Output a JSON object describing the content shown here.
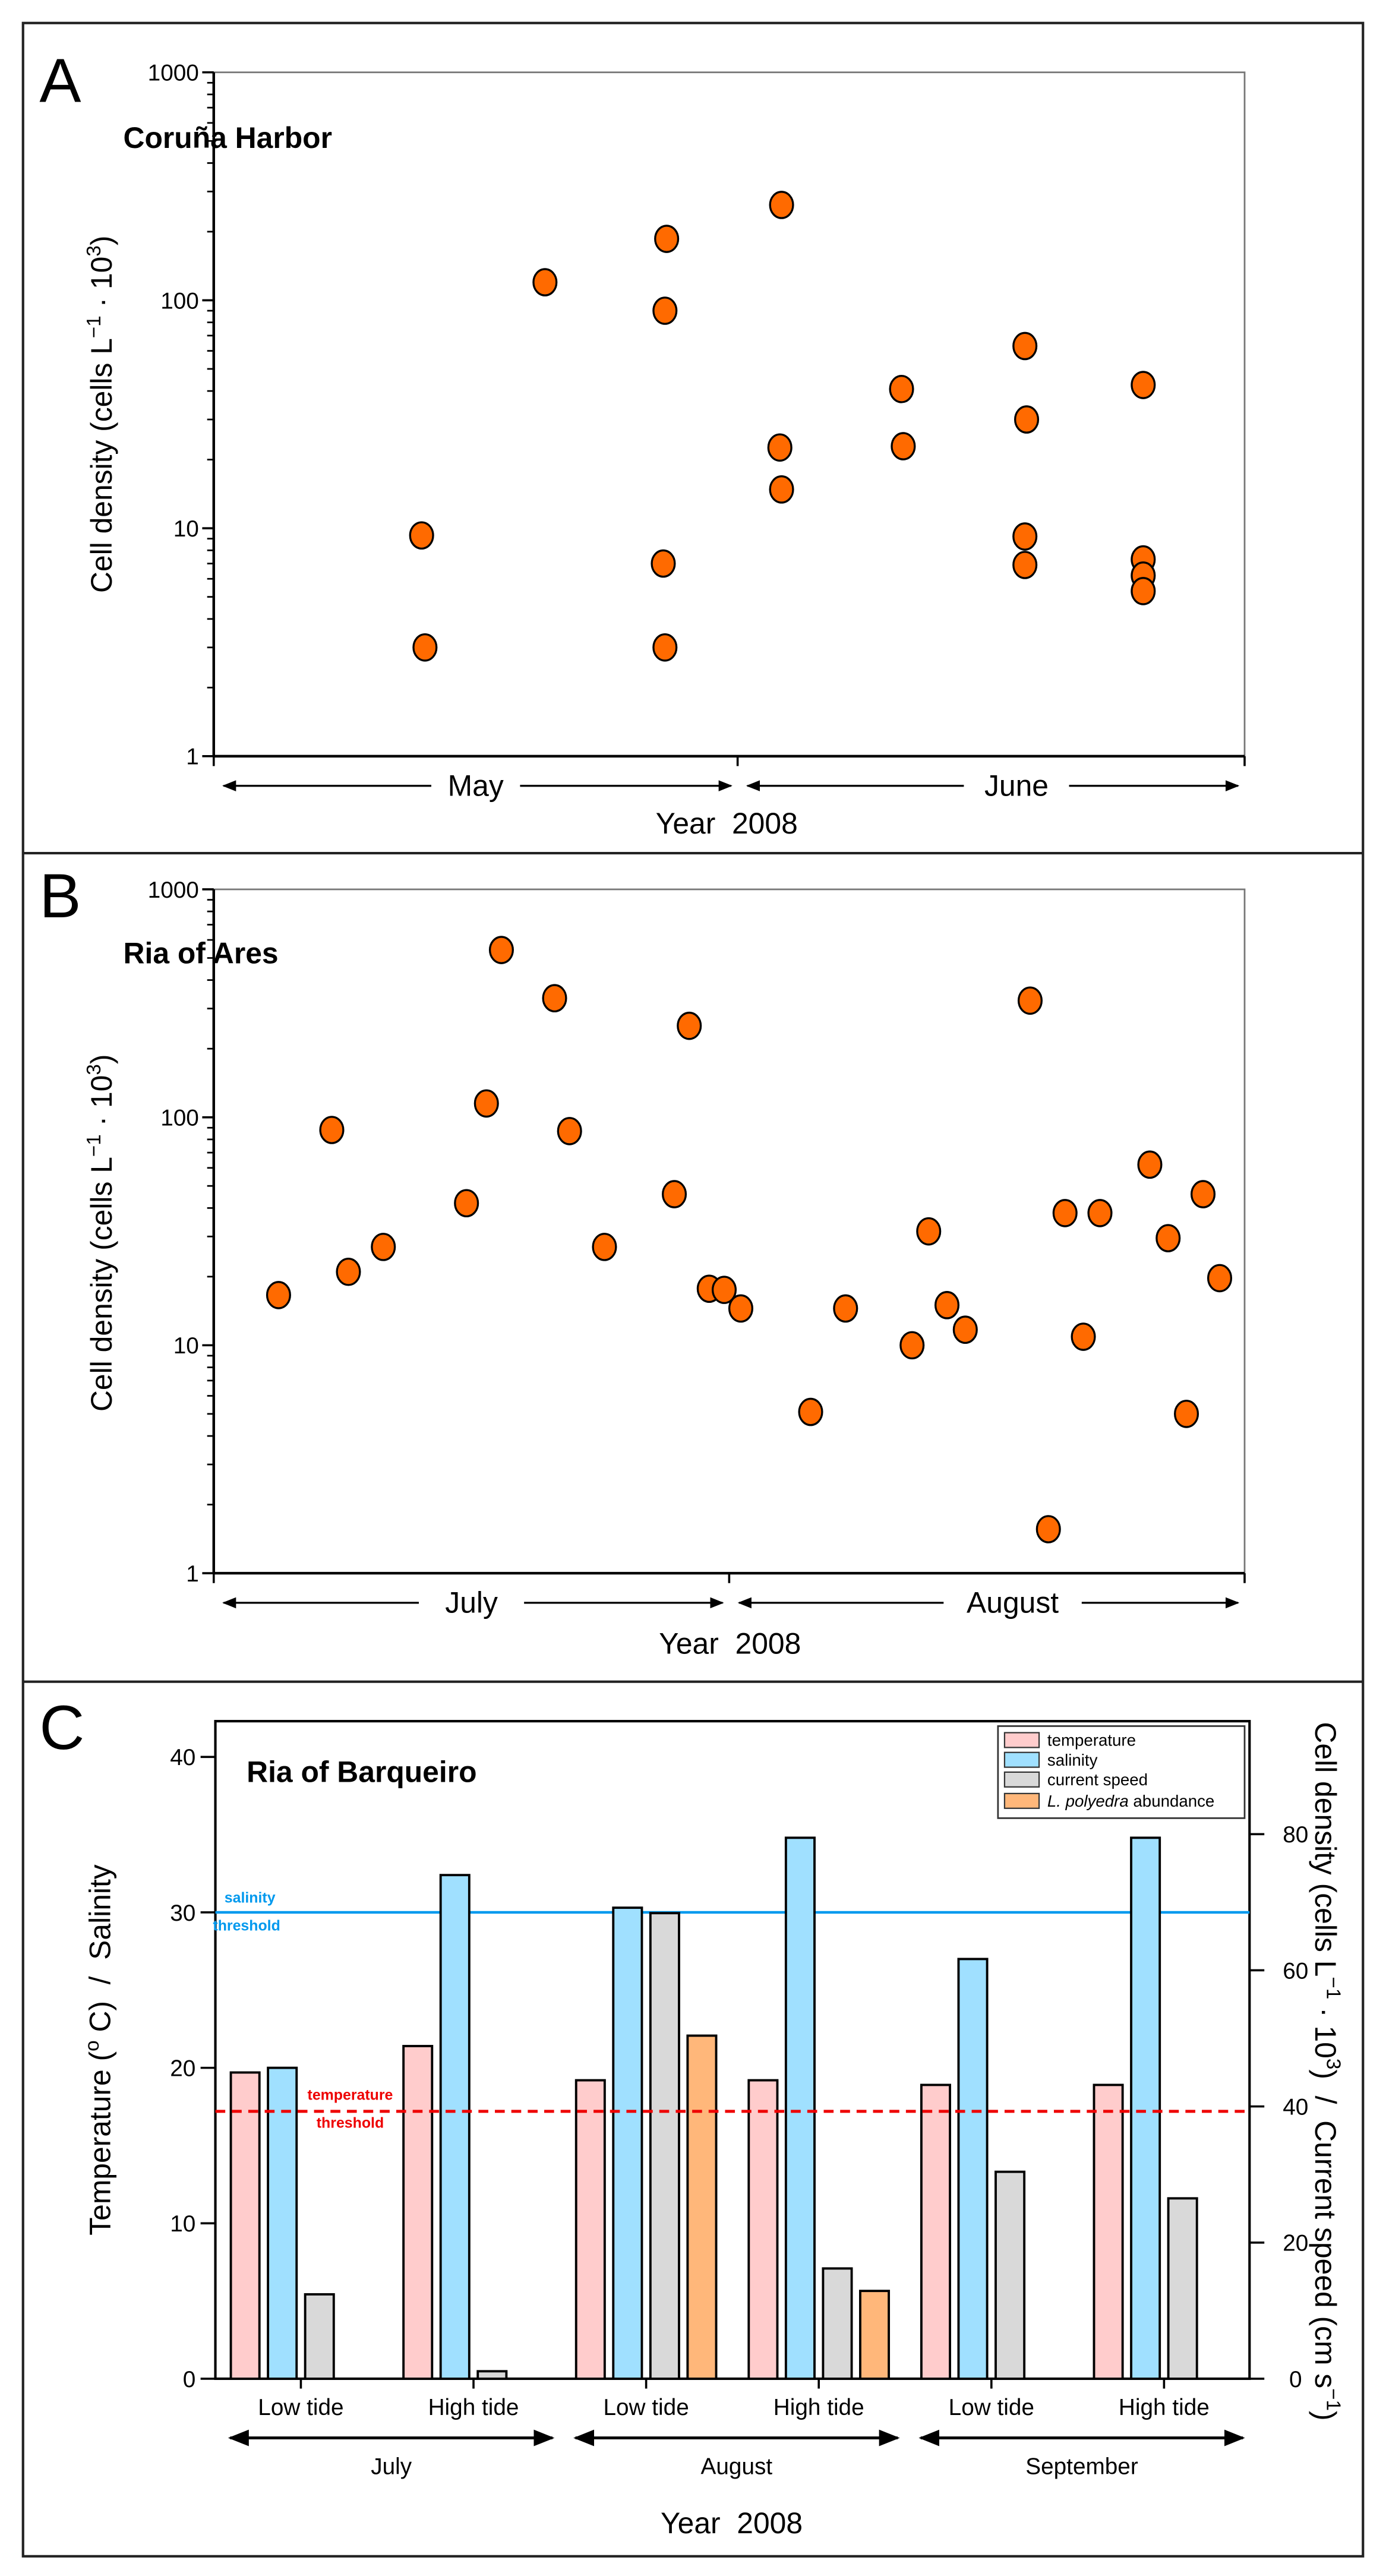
{
  "colors": {
    "dot_fill": "#FF6A00",
    "temperature": "#FFCCCC",
    "salinity": "#A0E0FF",
    "current_speed": "#D9D9D9",
    "abundance": "#FFB77A",
    "salinity_threshold": "#0099EE",
    "temperature_threshold": "#EE0000"
  },
  "chart_data": [
    {
      "type": "scatter",
      "panel_label": "A",
      "title": "Coruña Harbor",
      "ylabel": {
        "a": "Cell density (cells L",
        "sup1": "−1",
        "b": " · 10",
        "sup2": "3",
        "c": ")"
      },
      "xlabel": "Year  2008",
      "yscale": "log",
      "ylim": [
        1,
        1000
      ],
      "yticks": [
        "1",
        "10",
        "100",
        "1000"
      ],
      "x_unit": "days from start of period",
      "xlim": [
        0,
        61
      ],
      "months": [
        {
          "label": "May",
          "range": [
            0,
            31
          ]
        },
        {
          "label": "June",
          "range": [
            31,
            61
          ]
        }
      ],
      "points": [
        [
          12.3,
          9.3
        ],
        [
          12.5,
          3.0
        ],
        [
          19.6,
          120
        ],
        [
          26.8,
          186
        ],
        [
          26.7,
          90
        ],
        [
          26.6,
          7.0
        ],
        [
          26.7,
          3.0
        ],
        [
          33.6,
          262
        ],
        [
          33.5,
          22.6
        ],
        [
          33.6,
          14.8
        ],
        [
          40.7,
          40.8
        ],
        [
          40.8,
          22.9
        ],
        [
          48.0,
          63
        ],
        [
          48.1,
          30
        ],
        [
          48.0,
          9.2
        ],
        [
          48.0,
          6.9
        ],
        [
          55.0,
          42.5
        ],
        [
          55.0,
          7.3
        ],
        [
          55.0,
          6.2
        ],
        [
          55.0,
          5.3
        ]
      ]
    },
    {
      "type": "scatter",
      "panel_label": "B",
      "title": "Ria of Ares",
      "ylabel": {
        "a": "Cell density (cells L",
        "sup1": "−1",
        "b": " · 10",
        "sup2": "3",
        "c": ")"
      },
      "xlabel": "Year  2008",
      "yscale": "log",
      "ylim": [
        1,
        1000
      ],
      "yticks": [
        "1",
        "10",
        "100",
        "1000"
      ],
      "x_unit": "days from start of period",
      "xlim": [
        0,
        62
      ],
      "months": [
        {
          "label": "July",
          "range": [
            0,
            31
          ]
        },
        {
          "label": "August",
          "range": [
            31,
            62
          ]
        }
      ],
      "points": [
        [
          3.9,
          16.6
        ],
        [
          7.1,
          88
        ],
        [
          8.1,
          21
        ],
        [
          10.2,
          27
        ],
        [
          15.2,
          42
        ],
        [
          16.4,
          115
        ],
        [
          17.3,
          542
        ],
        [
          20.5,
          333
        ],
        [
          21.4,
          87
        ],
        [
          23.5,
          27
        ],
        [
          27.7,
          46
        ],
        [
          28.6,
          252
        ],
        [
          29.8,
          17.7
        ],
        [
          30.7,
          17.5
        ],
        [
          31.7,
          14.5
        ],
        [
          35.9,
          5.1
        ],
        [
          38.0,
          14.5
        ],
        [
          42.0,
          10
        ],
        [
          43.0,
          31.6
        ],
        [
          44.1,
          15
        ],
        [
          45.2,
          11.7
        ],
        [
          49.1,
          325
        ],
        [
          50.2,
          1.56
        ],
        [
          51.2,
          38
        ],
        [
          52.3,
          10.9
        ],
        [
          53.3,
          38
        ],
        [
          56.3,
          62
        ],
        [
          57.4,
          29.5
        ],
        [
          58.5,
          5
        ],
        [
          59.5,
          46
        ],
        [
          60.5,
          19.7
        ]
      ]
    },
    {
      "type": "bar",
      "panel_label": "C",
      "title": "Ria of Barqueiro",
      "ylabel_left": {
        "a": "Temperature (",
        "sup": "o",
        "b": " C)  /  Salinity"
      },
      "ylabel_right": {
        "a": "Cell density (cells L",
        "sup1": "−1",
        "b": " · 10",
        "sup2": "3",
        "c": ")  /  Current speed (cm s",
        "sup3": "−1",
        "d": ")"
      },
      "xlabel": "Year  2008",
      "ylim_left": [
        0,
        42.3
      ],
      "ylim_right": [
        0,
        96.6
      ],
      "yticks_left": [
        0,
        10,
        20,
        30,
        40
      ],
      "yticks_right": [
        0,
        20,
        40,
        60,
        80
      ],
      "categories": [
        "Low tide",
        "High tide",
        "Low tide",
        "High tide",
        "Low tide",
        "High tide"
      ],
      "months": [
        {
          "label": "July",
          "groups": [
            0,
            1
          ]
        },
        {
          "label": "August",
          "groups": [
            2,
            3
          ]
        },
        {
          "label": "September",
          "groups": [
            4,
            5
          ]
        }
      ],
      "series": [
        {
          "name": "temperature",
          "axis": "left",
          "values": [
            19.7,
            21.4,
            19.2,
            19.2,
            18.9,
            18.9
          ]
        },
        {
          "name": "salinity",
          "axis": "left",
          "values": [
            20.0,
            32.4,
            30.3,
            34.8,
            27.0,
            34.8
          ]
        },
        {
          "name": "current speed",
          "axis": "right",
          "values": [
            12.4,
            1.1,
            68.4,
            16.2,
            30.4,
            26.5
          ]
        },
        {
          "name": "L. polyedra abundance",
          "name_italic": "L. polyedra",
          "name_rest": " abundance",
          "axis": "right",
          "values": [
            null,
            null,
            50.4,
            12.9,
            null,
            null
          ]
        }
      ],
      "thresholds": [
        {
          "name": "salinity threshold",
          "line1": "salinity",
          "line2": "threshold",
          "axis": "left",
          "value": 30
        },
        {
          "name": "temperature threshold",
          "line1": "temperature",
          "line2": "threshold",
          "axis": "left",
          "value": 17.2
        }
      ],
      "legend": {
        "position": "top-right",
        "items": [
          "temperature",
          "salinity",
          "current speed",
          "L. polyedra abundance"
        ]
      }
    }
  ]
}
